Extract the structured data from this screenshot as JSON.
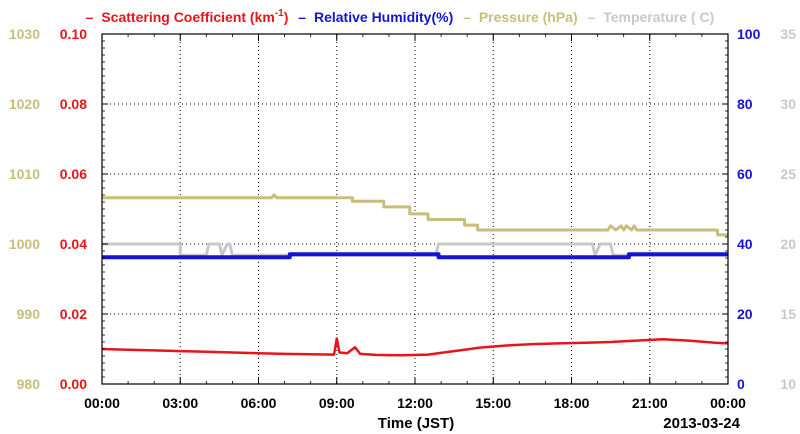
{
  "chart_data": {
    "type": "line",
    "xlabel": "Time (JST)",
    "date_label": "2013-03-24",
    "x_ticks": [
      "00:00",
      "03:00",
      "06:00",
      "09:00",
      "12:00",
      "15:00",
      "18:00",
      "21:00",
      "00:00"
    ],
    "xlim_hours": [
      0,
      24
    ],
    "grid": true,
    "legend_position": "top",
    "axes": {
      "pressure": {
        "range": [
          980,
          1030
        ],
        "ticks": [
          "980",
          "990",
          "1000",
          "1010",
          "1020",
          "1030"
        ],
        "color": "#c8be7a"
      },
      "scattering": {
        "range": [
          0,
          0.1
        ],
        "ticks": [
          "0.00",
          "0.02",
          "0.04",
          "0.06",
          "0.08",
          "0.10"
        ],
        "color": "#e8141c"
      },
      "humidity": {
        "range": [
          0,
          100
        ],
        "ticks": [
          "0",
          "20",
          "40",
          "60",
          "80",
          "100"
        ],
        "color": "#1414d2"
      },
      "temperature": {
        "range": [
          10,
          35
        ],
        "ticks": [
          "10",
          "15",
          "20",
          "25",
          "30",
          "35"
        ],
        "color": "#c8c8c8"
      }
    },
    "legend": {
      "dash": "–",
      "scattering_main": "Scattering Coefficient (km",
      "scattering_sup": "-1",
      "scattering_end": ")",
      "humidity": "Relative Humidity(%)",
      "pressure": "Pressure (hPa)",
      "temperature": "Temperature (",
      "temperature_unit": "C)"
    },
    "series": [
      {
        "key": "pressure",
        "name": "Pressure (hPa)",
        "axis": "pressure",
        "points": [
          [
            0,
            1006.6
          ],
          [
            6.5,
            1006.6
          ],
          [
            6.6,
            1007.0
          ],
          [
            6.7,
            1006.6
          ],
          [
            9.6,
            1006.6
          ],
          [
            9.6,
            1006.1
          ],
          [
            10.8,
            1006.1
          ],
          [
            10.8,
            1005.3
          ],
          [
            11.8,
            1005.3
          ],
          [
            11.8,
            1004.3
          ],
          [
            12.5,
            1004.3
          ],
          [
            12.5,
            1003.5
          ],
          [
            13.9,
            1003.5
          ],
          [
            13.9,
            1002.7
          ],
          [
            14.4,
            1002.7
          ],
          [
            14.4,
            1002.0
          ],
          [
            19.4,
            1002.0
          ],
          [
            19.5,
            1002.6
          ],
          [
            19.7,
            1002.0
          ],
          [
            19.9,
            1002.6
          ],
          [
            20.0,
            1002.0
          ],
          [
            20.1,
            1002.6
          ],
          [
            20.3,
            1002.0
          ],
          [
            20.4,
            1002.6
          ],
          [
            20.5,
            1002.0
          ],
          [
            23.6,
            1002.0
          ],
          [
            23.6,
            1001.3
          ],
          [
            24,
            1001.3
          ]
        ]
      },
      {
        "key": "temperature",
        "name": "Temperature",
        "axis": "temperature",
        "points": [
          [
            0,
            20.0
          ],
          [
            3.0,
            20.0
          ],
          [
            3.0,
            19.2
          ],
          [
            4.0,
            19.2
          ],
          [
            4.1,
            20.0
          ],
          [
            4.5,
            20.0
          ],
          [
            4.6,
            19.2
          ],
          [
            4.8,
            20.0
          ],
          [
            4.9,
            20.0
          ],
          [
            5.0,
            19.2
          ],
          [
            12.8,
            19.2
          ],
          [
            12.9,
            20.0
          ],
          [
            18.8,
            20.0
          ],
          [
            18.9,
            19.2
          ],
          [
            19.1,
            20.0
          ],
          [
            19.5,
            20.0
          ],
          [
            19.6,
            19.2
          ],
          [
            24,
            19.2
          ]
        ]
      },
      {
        "key": "humidity",
        "name": "Relative Humidity(%)",
        "axis": "humidity",
        "points": [
          [
            0,
            36.2
          ],
          [
            7.2,
            36.2
          ],
          [
            7.2,
            37.1
          ],
          [
            12.9,
            37.1
          ],
          [
            12.9,
            36.2
          ],
          [
            20.2,
            36.2
          ],
          [
            20.2,
            37.1
          ],
          [
            24,
            37.1
          ]
        ]
      },
      {
        "key": "scattering",
        "name": "Scattering Coefficient",
        "axis": "scattering",
        "points": [
          [
            0,
            0.01
          ],
          [
            1,
            0.0098
          ],
          [
            2,
            0.0096
          ],
          [
            3,
            0.0094
          ],
          [
            4,
            0.0092
          ],
          [
            5,
            0.009
          ],
          [
            6,
            0.0088
          ],
          [
            7,
            0.0086
          ],
          [
            8,
            0.0085
          ],
          [
            8.9,
            0.0084
          ],
          [
            9.0,
            0.013
          ],
          [
            9.1,
            0.009
          ],
          [
            9.4,
            0.0088
          ],
          [
            9.7,
            0.0105
          ],
          [
            9.9,
            0.0086
          ],
          [
            10.5,
            0.0083
          ],
          [
            11.5,
            0.0082
          ],
          [
            12.5,
            0.0084
          ],
          [
            13.5,
            0.0094
          ],
          [
            14.5,
            0.0104
          ],
          [
            15.5,
            0.011
          ],
          [
            16.5,
            0.0114
          ],
          [
            17.5,
            0.0116
          ],
          [
            18.5,
            0.0118
          ],
          [
            19.5,
            0.012
          ],
          [
            20.5,
            0.0124
          ],
          [
            21.5,
            0.0128
          ],
          [
            22.5,
            0.0124
          ],
          [
            23.5,
            0.0118
          ],
          [
            24,
            0.0116
          ]
        ]
      }
    ]
  }
}
